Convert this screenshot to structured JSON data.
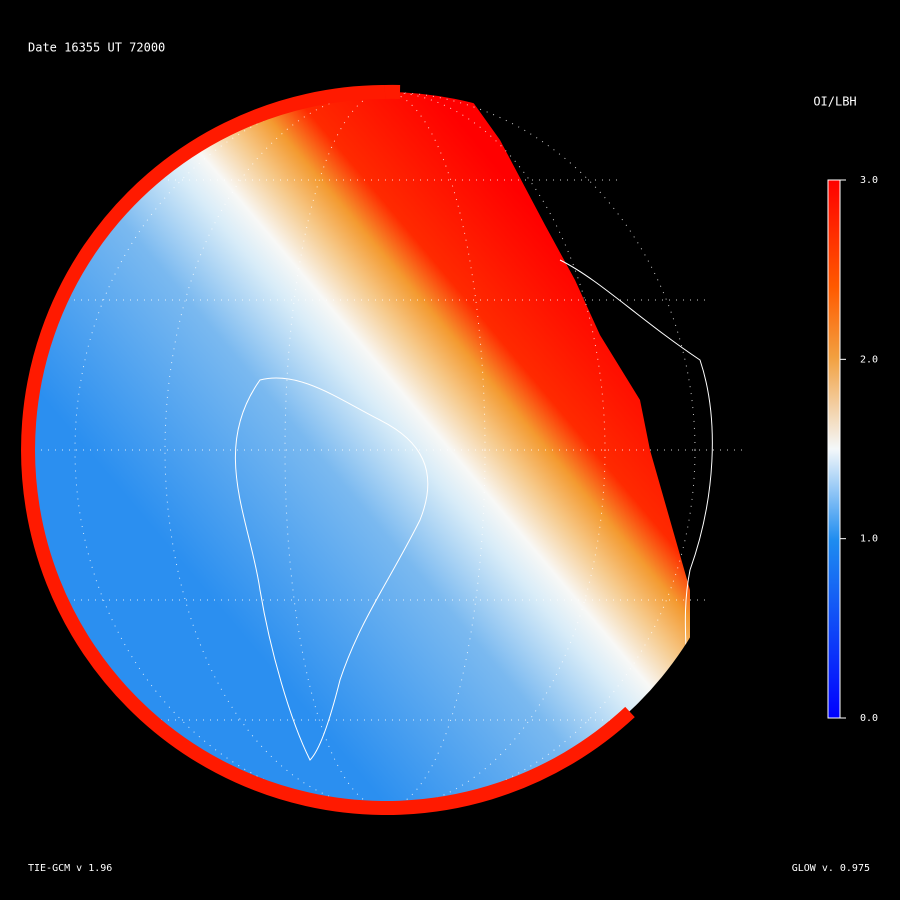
{
  "header": {
    "title": "Date 16355  UT 72000"
  },
  "colorbar": {
    "title": "OI/LBH",
    "lim": [
      0,
      3
    ],
    "ticks": [
      {
        "value": 3,
        "label": "3.0"
      },
      {
        "value": 2,
        "label": "2.0"
      },
      {
        "value": 1,
        "label": "1.0"
      },
      {
        "value": 0,
        "label": "0.0"
      }
    ]
  },
  "footer": {
    "left": "TIE-GCM v 1.96",
    "right": "GLOW v. 0.975"
  }
}
